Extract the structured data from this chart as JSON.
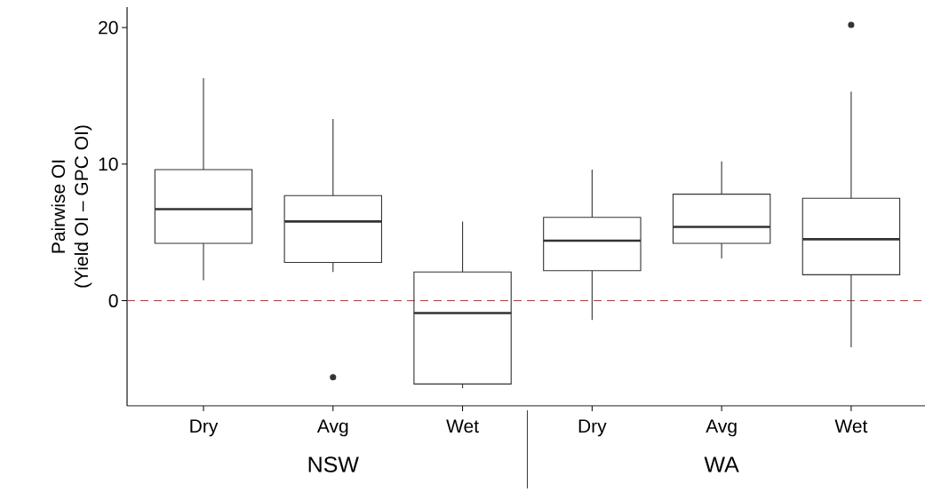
{
  "chart_data": {
    "type": "box",
    "ylabel": "Pairwise OI\n(Yield OI – GPC OI)",
    "categories": [
      "Dry",
      "Avg",
      "Wet",
      "Dry",
      "Avg",
      "Wet"
    ],
    "boxes": [
      {
        "low": 1.5,
        "q1": 4.2,
        "median": 6.7,
        "q3": 9.6,
        "high": 16.3
      },
      {
        "low": 2.1,
        "q1": 2.8,
        "median": 5.8,
        "q3": 7.7,
        "high": 13.3,
        "outliers": [
          -5.6
        ]
      },
      {
        "low": -6.4,
        "q1": -6.1,
        "median": -0.9,
        "q3": 2.1,
        "high": 5.8
      },
      {
        "low": -1.4,
        "q1": 2.2,
        "median": 4.4,
        "q3": 6.1,
        "high": 9.6
      },
      {
        "low": 3.1,
        "q1": 4.2,
        "median": 5.4,
        "q3": 7.8,
        "high": 10.2
      },
      {
        "low": -3.4,
        "q1": 1.9,
        "median": 4.5,
        "q3": 7.5,
        "high": 15.3,
        "outliers": [
          20.2
        ]
      }
    ],
    "color": "#333333",
    "ylim": [
      -7.7,
      21.5
    ],
    "yticks": [
      0,
      10,
      20
    ],
    "ref_lines": [
      {
        "axis": "y",
        "value": 0,
        "color": "#e03030",
        "line_style": "dashed"
      }
    ],
    "annotations": [
      "NSW",
      "WA"
    ],
    "grid": false
  }
}
